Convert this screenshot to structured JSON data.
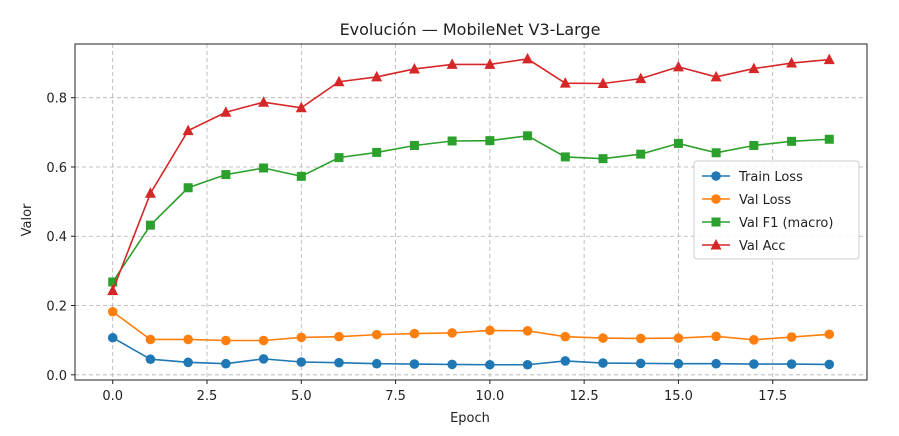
{
  "chart_data": {
    "type": "line",
    "title": "Evolución — MobileNet V3-Large",
    "xlabel": "Epoch",
    "ylabel": "Valor",
    "xlim": [
      -1,
      20
    ],
    "ylim": [
      -0.015,
      0.955
    ],
    "xticks": [
      0.0,
      2.5,
      5.0,
      7.5,
      10.0,
      12.5,
      15.0,
      17.5
    ],
    "xtick_labels": [
      "0.0",
      "2.5",
      "5.0",
      "7.5",
      "10.0",
      "12.5",
      "15.0",
      "17.5"
    ],
    "yticks": [
      0.0,
      0.2,
      0.4,
      0.6,
      0.8
    ],
    "ytick_labels": [
      "0.0",
      "0.2",
      "0.4",
      "0.6",
      "0.8"
    ],
    "grid": true,
    "legend_position": "center-right",
    "x": [
      0,
      1,
      2,
      3,
      4,
      5,
      6,
      7,
      8,
      9,
      10,
      11,
      12,
      13,
      14,
      15,
      16,
      17,
      18,
      19
    ],
    "series": [
      {
        "name": "Train Loss",
        "color": "#1f77b4",
        "marker": "circle",
        "values": [
          0.107,
          0.045,
          0.036,
          0.032,
          0.046,
          0.037,
          0.035,
          0.032,
          0.031,
          0.03,
          0.029,
          0.029,
          0.04,
          0.034,
          0.033,
          0.032,
          0.032,
          0.031,
          0.031,
          0.03
        ]
      },
      {
        "name": "Val Loss",
        "color": "#ff7f0e",
        "marker": "circle",
        "values": [
          0.182,
          0.102,
          0.102,
          0.099,
          0.099,
          0.108,
          0.11,
          0.116,
          0.119,
          0.121,
          0.128,
          0.127,
          0.11,
          0.106,
          0.105,
          0.106,
          0.111,
          0.101,
          0.109,
          0.117
        ]
      },
      {
        "name": "Val F1 (macro)",
        "color": "#2ca02c",
        "marker": "square",
        "values": [
          0.268,
          0.432,
          0.54,
          0.578,
          0.597,
          0.573,
          0.627,
          0.642,
          0.662,
          0.675,
          0.676,
          0.69,
          0.629,
          0.624,
          0.637,
          0.668,
          0.641,
          0.662,
          0.674,
          0.68
        ]
      },
      {
        "name": "Val Acc",
        "color": "#d62728",
        "marker": "triangle",
        "values": [
          0.243,
          0.524,
          0.705,
          0.758,
          0.787,
          0.771,
          0.846,
          0.86,
          0.883,
          0.896,
          0.896,
          0.912,
          0.842,
          0.841,
          0.855,
          0.889,
          0.86,
          0.884,
          0.9,
          0.91
        ]
      }
    ]
  }
}
